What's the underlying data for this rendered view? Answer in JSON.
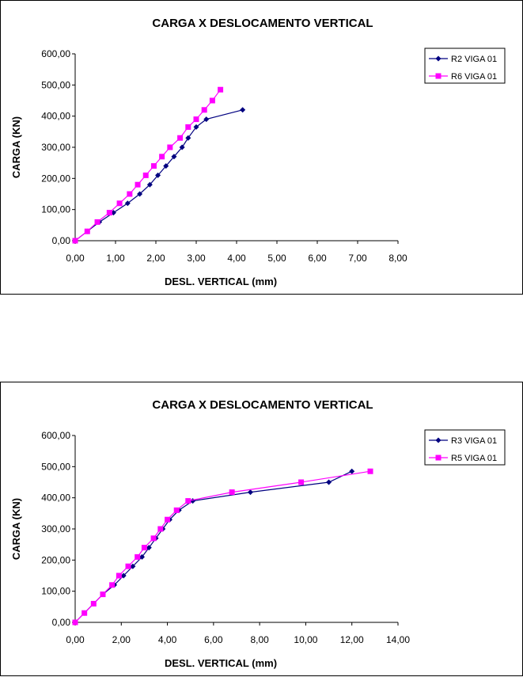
{
  "chart_data": [
    {
      "type": "line",
      "title": "CARGA X DESLOCAMENTO VERTICAL",
      "xlabel": "DESL. VERTICAL (mm)",
      "ylabel": "CARGA (KN)",
      "xlim": [
        0,
        8
      ],
      "ylim": [
        0,
        600
      ],
      "xticks": [
        "0,00",
        "1,00",
        "2,00",
        "3,00",
        "4,00",
        "5,00",
        "6,00",
        "7,00",
        "8,00"
      ],
      "yticks": [
        "0,00",
        "100,00",
        "200,00",
        "300,00",
        "400,00",
        "500,00",
        "600,00"
      ],
      "grid": false,
      "legend_position": "right",
      "series": [
        {
          "name": "R2 VIGA 01",
          "color": "#000080",
          "marker": "diamond",
          "points": [
            [
              0,
              0
            ],
            [
              0.3,
              30
            ],
            [
              0.6,
              60
            ],
            [
              0.95,
              90
            ],
            [
              1.3,
              120
            ],
            [
              1.6,
              150
            ],
            [
              1.85,
              180
            ],
            [
              2.05,
              210
            ],
            [
              2.25,
              240
            ],
            [
              2.45,
              270
            ],
            [
              2.65,
              300
            ],
            [
              2.8,
              330
            ],
            [
              3.0,
              365
            ],
            [
              3.25,
              390
            ],
            [
              4.15,
              420
            ]
          ]
        },
        {
          "name": "R6 VIGA 01",
          "color": "#ff00ff",
          "marker": "square",
          "points": [
            [
              0,
              0
            ],
            [
              0.3,
              30
            ],
            [
              0.55,
              60
            ],
            [
              0.85,
              90
            ],
            [
              1.1,
              120
            ],
            [
              1.35,
              150
            ],
            [
              1.55,
              180
            ],
            [
              1.75,
              210
            ],
            [
              1.95,
              240
            ],
            [
              2.15,
              270
            ],
            [
              2.35,
              300
            ],
            [
              2.6,
              330
            ],
            [
              2.8,
              365
            ],
            [
              3.0,
              390
            ],
            [
              3.2,
              420
            ],
            [
              3.4,
              450
            ],
            [
              3.6,
              485
            ]
          ]
        }
      ]
    },
    {
      "type": "line",
      "title": "CARGA X DESLOCAMENTO VERTICAL",
      "xlabel": "DESL. VERTICAL (mm)",
      "ylabel": "CARGA (KN)",
      "xlim": [
        0,
        14
      ],
      "ylim": [
        0,
        600
      ],
      "xticks": [
        "0,00",
        "2,00",
        "4,00",
        "6,00",
        "8,00",
        "10,00",
        "12,00",
        "14,00"
      ],
      "yticks": [
        "0,00",
        "100,00",
        "200,00",
        "300,00",
        "400,00",
        "500,00",
        "600,00"
      ],
      "grid": false,
      "legend_position": "right",
      "series": [
        {
          "name": "R3 VIGA 01",
          "color": "#000080",
          "marker": "diamond",
          "points": [
            [
              0,
              0
            ],
            [
              0.4,
              30
            ],
            [
              0.8,
              60
            ],
            [
              1.2,
              90
            ],
            [
              1.7,
              120
            ],
            [
              2.1,
              150
            ],
            [
              2.5,
              180
            ],
            [
              2.9,
              210
            ],
            [
              3.2,
              240
            ],
            [
              3.5,
              270
            ],
            [
              3.8,
              300
            ],
            [
              4.1,
              330
            ],
            [
              4.5,
              360
            ],
            [
              5.1,
              390
            ],
            [
              7.6,
              418
            ],
            [
              11.0,
              450
            ],
            [
              12.0,
              485
            ]
          ]
        },
        {
          "name": "R5 VIGA 01",
          "color": "#ff00ff",
          "marker": "square",
          "points": [
            [
              0,
              0
            ],
            [
              0.4,
              30
            ],
            [
              0.8,
              60
            ],
            [
              1.2,
              90
            ],
            [
              1.6,
              120
            ],
            [
              1.9,
              150
            ],
            [
              2.3,
              180
            ],
            [
              2.7,
              210
            ],
            [
              3.0,
              240
            ],
            [
              3.4,
              270
            ],
            [
              3.7,
              300
            ],
            [
              4.0,
              330
            ],
            [
              4.4,
              360
            ],
            [
              4.9,
              390
            ],
            [
              6.8,
              418
            ],
            [
              9.8,
              450
            ],
            [
              12.8,
              485
            ]
          ]
        }
      ]
    }
  ]
}
